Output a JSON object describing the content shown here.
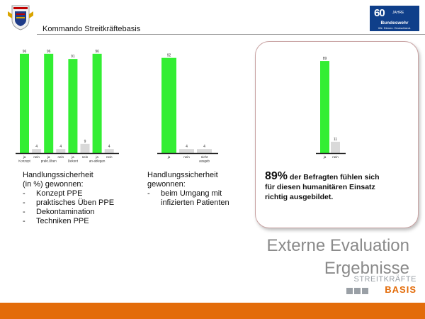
{
  "header": {
    "title": "Kommando Streitkräftebasis",
    "logo": {
      "big": "60",
      "small": "JAHRE",
      "name": "Bundeswehr",
      "tagline": "Wir. Dienen. Deutschland."
    }
  },
  "colors": {
    "bar": "#33ee33",
    "bar_light": "#d9d9d9",
    "accent": "#e36c0a",
    "title_grey": "#8a8a8a"
  },
  "chart_data": [
    {
      "type": "bar",
      "categories": [
        "ja Konzept",
        "nein",
        "ja prakt.Üben",
        "nein",
        "ja Dekont",
        "nein",
        "ja an-ablegen",
        "nein"
      ],
      "tick_labels": [
        [
          "ja",
          "Konzept"
        ],
        [
          "nein"
        ],
        [
          "ja",
          "prakt.Üben"
        ],
        [
          "nein"
        ],
        [
          "ja",
          "Dekont"
        ],
        [
          "nein"
        ],
        [
          "ja",
          "an-ablegen"
        ],
        [
          "nein"
        ]
      ],
      "values": [
        96,
        4,
        96,
        4,
        91,
        9,
        96,
        4
      ],
      "ylim": [
        0,
        100
      ],
      "grid": false,
      "legend": "none"
    },
    {
      "type": "bar",
      "categories": [
        "ja",
        "nein",
        "nicht ausgeb"
      ],
      "tick_labels": [
        [
          "ja"
        ],
        [
          "nein"
        ],
        [
          "nicht",
          "ausgeb"
        ]
      ],
      "values": [
        92,
        4,
        4
      ],
      "ylim": [
        0,
        100
      ],
      "grid": false,
      "legend": "none"
    },
    {
      "type": "bar",
      "categories": [
        "ja",
        "nein"
      ],
      "tick_labels": [
        [
          "ja"
        ],
        [
          "nein"
        ]
      ],
      "values": [
        89,
        11
      ],
      "ylim": [
        0,
        100
      ],
      "grid": false,
      "legend": "none"
    }
  ],
  "text_left": {
    "heading_lines": [
      "Handlungssicherheit",
      "(in %) gewonnen:"
    ],
    "items": [
      "Konzept PPE",
      "praktisches Üben PPE",
      "Dekontamination",
      "Techniken PPE"
    ]
  },
  "text_middle": {
    "heading_lines": [
      "Handlungssicherheit",
      "gewonnen:"
    ],
    "items": [
      "beim Umgang mit infizierten Patienten"
    ]
  },
  "callout": {
    "percent": "89%",
    "line1_rest": " der Befragten fühlen sich",
    "line2": "für diesen humanitären Einsatz",
    "line3": "richtig ausgebildet."
  },
  "title": {
    "line1": "Externe Evaluation",
    "line2": "Ergebnisse"
  },
  "branding": {
    "word1": "STREITKRÄFTE",
    "word2": "BASIS"
  }
}
